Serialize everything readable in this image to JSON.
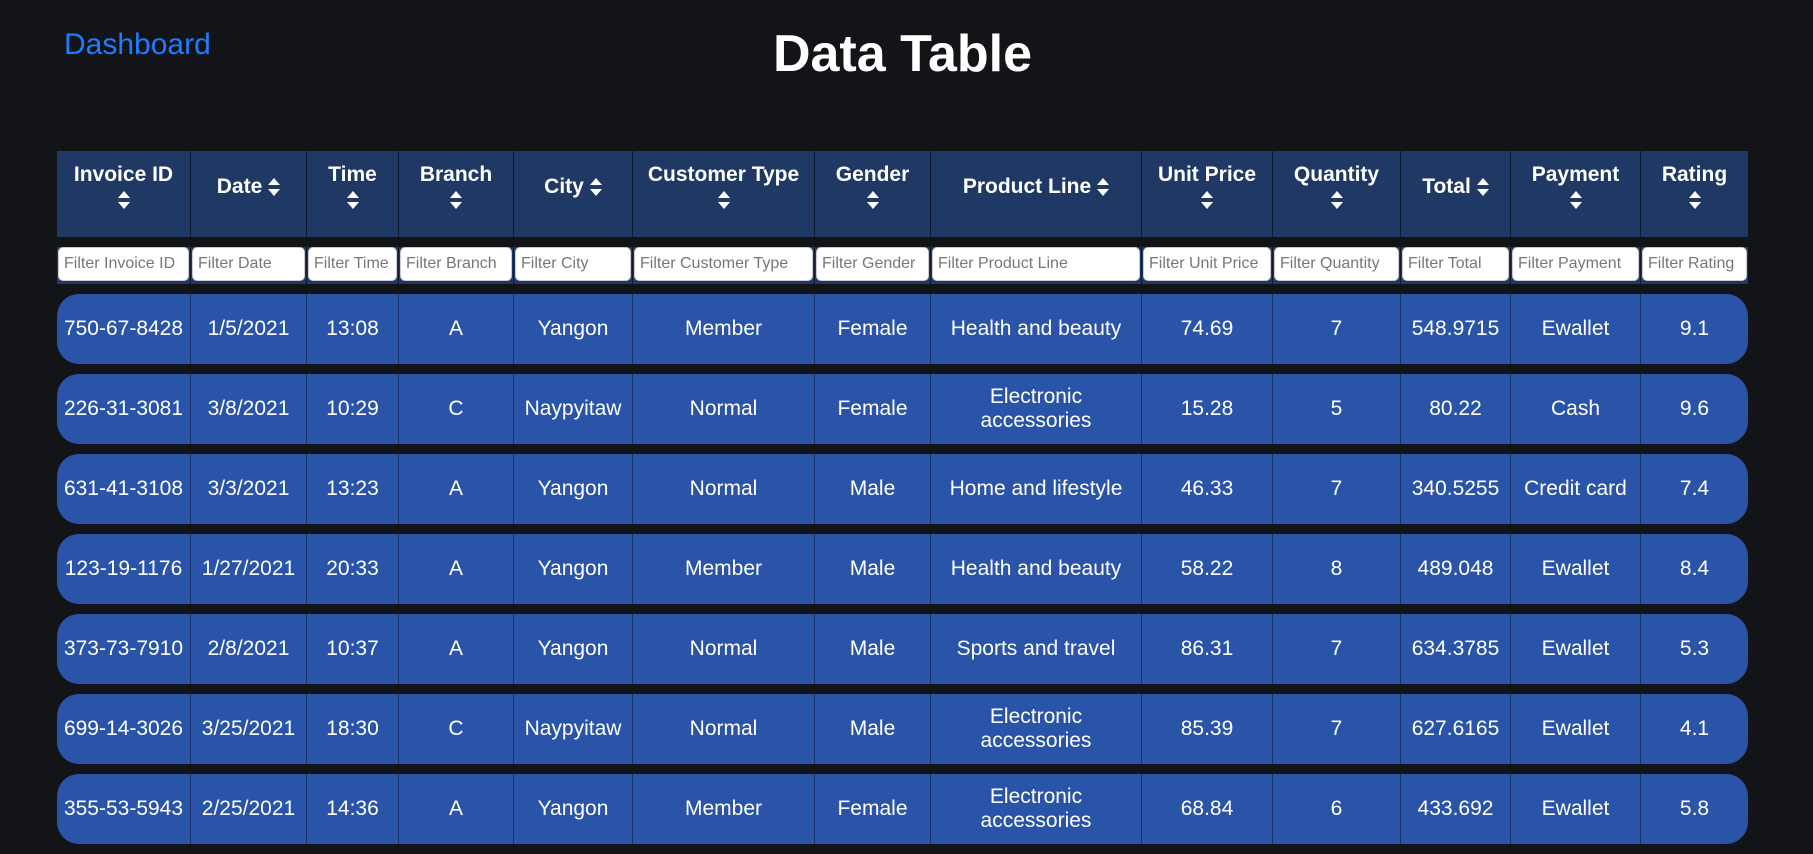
{
  "nav": {
    "dashboard_label": "Dashboard"
  },
  "page": {
    "title": "Data Table"
  },
  "table": {
    "columns": [
      {
        "key": "invoice_id",
        "label": "Invoice ID",
        "filter_placeholder": "Filter Invoice ID",
        "sort_inline": false
      },
      {
        "key": "date",
        "label": "Date",
        "filter_placeholder": "Filter Date",
        "sort_inline": true
      },
      {
        "key": "time",
        "label": "Time",
        "filter_placeholder": "Filter Time",
        "sort_inline": false
      },
      {
        "key": "branch",
        "label": "Branch",
        "filter_placeholder": "Filter Branch",
        "sort_inline": false
      },
      {
        "key": "city",
        "label": "City",
        "filter_placeholder": "Filter City",
        "sort_inline": true
      },
      {
        "key": "customer_type",
        "label": "Customer Type",
        "filter_placeholder": "Filter Customer Type",
        "sort_inline": false
      },
      {
        "key": "gender",
        "label": "Gender",
        "filter_placeholder": "Filter Gender",
        "sort_inline": false
      },
      {
        "key": "product_line",
        "label": "Product Line",
        "filter_placeholder": "Filter Product Line",
        "sort_inline": true
      },
      {
        "key": "unit_price",
        "label": "Unit Price",
        "filter_placeholder": "Filter Unit Price",
        "sort_inline": false
      },
      {
        "key": "quantity",
        "label": "Quantity",
        "filter_placeholder": "Filter Quantity",
        "sort_inline": false
      },
      {
        "key": "total",
        "label": "Total",
        "filter_placeholder": "Filter Total",
        "sort_inline": true
      },
      {
        "key": "payment",
        "label": "Payment",
        "filter_placeholder": "Filter Payment",
        "sort_inline": false
      },
      {
        "key": "rating",
        "label": "Rating",
        "filter_placeholder": "Filter Rating",
        "sort_inline": false
      }
    ],
    "rows": [
      [
        "750-67-8428",
        "1/5/2021",
        "13:08",
        "A",
        "Yangon",
        "Member",
        "Female",
        "Health and beauty",
        "74.69",
        "7",
        "548.9715",
        "Ewallet",
        "9.1"
      ],
      [
        "226-31-3081",
        "3/8/2021",
        "10:29",
        "C",
        "Naypyitaw",
        "Normal",
        "Female",
        "Electronic accessories",
        "15.28",
        "5",
        "80.22",
        "Cash",
        "9.6"
      ],
      [
        "631-41-3108",
        "3/3/2021",
        "13:23",
        "A",
        "Yangon",
        "Normal",
        "Male",
        "Home and lifestyle",
        "46.33",
        "7",
        "340.5255",
        "Credit card",
        "7.4"
      ],
      [
        "123-19-1176",
        "1/27/2021",
        "20:33",
        "A",
        "Yangon",
        "Member",
        "Male",
        "Health and beauty",
        "58.22",
        "8",
        "489.048",
        "Ewallet",
        "8.4"
      ],
      [
        "373-73-7910",
        "2/8/2021",
        "10:37",
        "A",
        "Yangon",
        "Normal",
        "Male",
        "Sports and travel",
        "86.31",
        "7",
        "634.3785",
        "Ewallet",
        "5.3"
      ],
      [
        "699-14-3026",
        "3/25/2021",
        "18:30",
        "C",
        "Naypyitaw",
        "Normal",
        "Male",
        "Electronic accessories",
        "85.39",
        "7",
        "627.6165",
        "Ewallet",
        "4.1"
      ],
      [
        "355-53-5943",
        "2/25/2021",
        "14:36",
        "A",
        "Yangon",
        "Member",
        "Female",
        "Electronic accessories",
        "68.84",
        "6",
        "433.692",
        "Ewallet",
        "5.8"
      ]
    ]
  },
  "colors": {
    "background": "#121418",
    "link": "#1f7bff",
    "header_bg": "#1f3864",
    "row_bg": "#2954a8"
  }
}
